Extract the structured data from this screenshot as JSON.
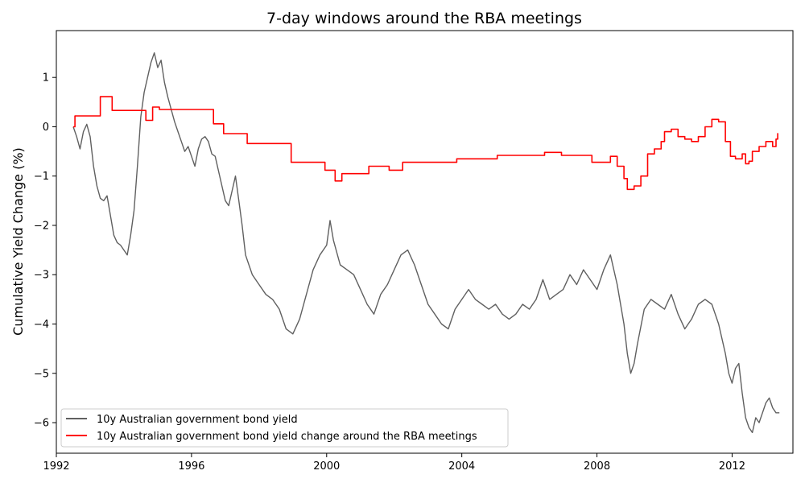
{
  "chart_data": {
    "type": "line",
    "title": "7-day windows around the RBA meetings",
    "xlabel": "",
    "ylabel": "Cumulative Yield Change (%)",
    "xlim": [
      1992.0,
      2013.8
    ],
    "ylim": [
      -6.62,
      1.95
    ],
    "x_ticks": [
      1992,
      1996,
      2000,
      2004,
      2008,
      2012
    ],
    "y_ticks": [
      1,
      0,
      -1,
      -2,
      -3,
      -4,
      -5,
      -6
    ],
    "y_tick_labels": [
      "1",
      "0",
      "−1",
      "−2",
      "−3",
      "−4",
      "−5",
      "−6"
    ],
    "grid": false,
    "legend_position": "lower-left",
    "series": [
      {
        "name": "10y Australian government bond yield",
        "color": "#606060",
        "style": "line",
        "points": [
          [
            1992.5,
            0.0
          ],
          [
            1992.6,
            -0.2
          ],
          [
            1992.7,
            -0.45
          ],
          [
            1992.8,
            -0.1
          ],
          [
            1992.9,
            0.05
          ],
          [
            1993.0,
            -0.2
          ],
          [
            1993.1,
            -0.8
          ],
          [
            1993.2,
            -1.2
          ],
          [
            1993.3,
            -1.45
          ],
          [
            1993.4,
            -1.5
          ],
          [
            1993.5,
            -1.4
          ],
          [
            1993.6,
            -1.8
          ],
          [
            1993.7,
            -2.2
          ],
          [
            1993.8,
            -2.35
          ],
          [
            1993.9,
            -2.4
          ],
          [
            1994.0,
            -2.5
          ],
          [
            1994.1,
            -2.6
          ],
          [
            1994.2,
            -2.2
          ],
          [
            1994.3,
            -1.7
          ],
          [
            1994.4,
            -0.8
          ],
          [
            1994.5,
            0.2
          ],
          [
            1994.6,
            0.7
          ],
          [
            1994.7,
            1.0
          ],
          [
            1994.8,
            1.3
          ],
          [
            1994.9,
            1.5
          ],
          [
            1995.0,
            1.2
          ],
          [
            1995.1,
            1.35
          ],
          [
            1995.2,
            0.9
          ],
          [
            1995.3,
            0.6
          ],
          [
            1995.4,
            0.35
          ],
          [
            1995.5,
            0.1
          ],
          [
            1995.6,
            -0.1
          ],
          [
            1995.7,
            -0.3
          ],
          [
            1995.8,
            -0.5
          ],
          [
            1995.9,
            -0.4
          ],
          [
            1996.0,
            -0.6
          ],
          [
            1996.1,
            -0.8
          ],
          [
            1996.2,
            -0.45
          ],
          [
            1996.3,
            -0.25
          ],
          [
            1996.4,
            -0.2
          ],
          [
            1996.5,
            -0.3
          ],
          [
            1996.6,
            -0.55
          ],
          [
            1996.7,
            -0.6
          ],
          [
            1996.8,
            -0.9
          ],
          [
            1996.9,
            -1.2
          ],
          [
            1997.0,
            -1.5
          ],
          [
            1997.1,
            -1.6
          ],
          [
            1997.2,
            -1.3
          ],
          [
            1997.3,
            -1.0
          ],
          [
            1997.4,
            -1.5
          ],
          [
            1997.5,
            -2.0
          ],
          [
            1997.6,
            -2.6
          ],
          [
            1997.7,
            -2.8
          ],
          [
            1997.8,
            -3.0
          ],
          [
            1997.9,
            -3.1
          ],
          [
            1998.0,
            -3.2
          ],
          [
            1998.2,
            -3.4
          ],
          [
            1998.4,
            -3.5
          ],
          [
            1998.6,
            -3.7
          ],
          [
            1998.8,
            -4.1
          ],
          [
            1999.0,
            -4.2
          ],
          [
            1999.2,
            -3.9
          ],
          [
            1999.4,
            -3.4
          ],
          [
            1999.6,
            -2.9
          ],
          [
            1999.8,
            -2.6
          ],
          [
            2000.0,
            -2.4
          ],
          [
            2000.1,
            -1.9
          ],
          [
            2000.2,
            -2.3
          ],
          [
            2000.4,
            -2.8
          ],
          [
            2000.6,
            -2.9
          ],
          [
            2000.8,
            -3.0
          ],
          [
            2001.0,
            -3.3
          ],
          [
            2001.2,
            -3.6
          ],
          [
            2001.4,
            -3.8
          ],
          [
            2001.6,
            -3.4
          ],
          [
            2001.8,
            -3.2
          ],
          [
            2002.0,
            -2.9
          ],
          [
            2002.2,
            -2.6
          ],
          [
            2002.4,
            -2.5
          ],
          [
            2002.6,
            -2.8
          ],
          [
            2002.8,
            -3.2
          ],
          [
            2003.0,
            -3.6
          ],
          [
            2003.2,
            -3.8
          ],
          [
            2003.4,
            -4.0
          ],
          [
            2003.6,
            -4.1
          ],
          [
            2003.8,
            -3.7
          ],
          [
            2004.0,
            -3.5
          ],
          [
            2004.2,
            -3.3
          ],
          [
            2004.4,
            -3.5
          ],
          [
            2004.6,
            -3.6
          ],
          [
            2004.8,
            -3.7
          ],
          [
            2005.0,
            -3.6
          ],
          [
            2005.2,
            -3.8
          ],
          [
            2005.4,
            -3.9
          ],
          [
            2005.6,
            -3.8
          ],
          [
            2005.8,
            -3.6
          ],
          [
            2006.0,
            -3.7
          ],
          [
            2006.2,
            -3.5
          ],
          [
            2006.4,
            -3.1
          ],
          [
            2006.6,
            -3.5
          ],
          [
            2006.8,
            -3.4
          ],
          [
            2007.0,
            -3.3
          ],
          [
            2007.2,
            -3.0
          ],
          [
            2007.4,
            -3.2
          ],
          [
            2007.6,
            -2.9
          ],
          [
            2007.8,
            -3.1
          ],
          [
            2008.0,
            -3.3
          ],
          [
            2008.2,
            -2.9
          ],
          [
            2008.4,
            -2.6
          ],
          [
            2008.6,
            -3.2
          ],
          [
            2008.8,
            -4.0
          ],
          [
            2008.9,
            -4.6
          ],
          [
            2009.0,
            -5.0
          ],
          [
            2009.1,
            -4.8
          ],
          [
            2009.2,
            -4.4
          ],
          [
            2009.4,
            -3.7
          ],
          [
            2009.6,
            -3.5
          ],
          [
            2009.8,
            -3.6
          ],
          [
            2010.0,
            -3.7
          ],
          [
            2010.2,
            -3.4
          ],
          [
            2010.4,
            -3.8
          ],
          [
            2010.6,
            -4.1
          ],
          [
            2010.8,
            -3.9
          ],
          [
            2011.0,
            -3.6
          ],
          [
            2011.2,
            -3.5
          ],
          [
            2011.4,
            -3.6
          ],
          [
            2011.6,
            -4.0
          ],
          [
            2011.8,
            -4.6
          ],
          [
            2011.9,
            -5.0
          ],
          [
            2012.0,
            -5.2
          ],
          [
            2012.1,
            -4.9
          ],
          [
            2012.2,
            -4.8
          ],
          [
            2012.3,
            -5.4
          ],
          [
            2012.4,
            -5.9
          ],
          [
            2012.5,
            -6.1
          ],
          [
            2012.6,
            -6.2
          ],
          [
            2012.7,
            -5.9
          ],
          [
            2012.8,
            -6.0
          ],
          [
            2012.9,
            -5.8
          ],
          [
            2013.0,
            -5.6
          ],
          [
            2013.1,
            -5.5
          ],
          [
            2013.2,
            -5.7
          ],
          [
            2013.3,
            -5.8
          ],
          [
            2013.4,
            -5.8
          ]
        ]
      },
      {
        "name": "10y Australian government bond yield change around the RBA meetings",
        "color": "#ff0000",
        "style": "step",
        "points": [
          [
            1992.5,
            0.0
          ],
          [
            1992.55,
            0.22
          ],
          [
            1993.25,
            0.22
          ],
          [
            1993.3,
            0.61
          ],
          [
            1993.6,
            0.61
          ],
          [
            1993.65,
            0.33
          ],
          [
            1994.6,
            0.33
          ],
          [
            1994.65,
            0.13
          ],
          [
            1994.8,
            0.13
          ],
          [
            1994.85,
            0.4
          ],
          [
            1995.0,
            0.4
          ],
          [
            1995.05,
            0.35
          ],
          [
            1996.6,
            0.35
          ],
          [
            1996.65,
            0.06
          ],
          [
            1996.9,
            0.06
          ],
          [
            1996.95,
            -0.14
          ],
          [
            1997.6,
            -0.14
          ],
          [
            1997.65,
            -0.34
          ],
          [
            1998.9,
            -0.34
          ],
          [
            1998.95,
            -0.72
          ],
          [
            1999.9,
            -0.72
          ],
          [
            1999.95,
            -0.88
          ],
          [
            2000.2,
            -0.88
          ],
          [
            2000.25,
            -1.1
          ],
          [
            2000.4,
            -1.1
          ],
          [
            2000.45,
            -0.95
          ],
          [
            2001.2,
            -0.95
          ],
          [
            2001.25,
            -0.8
          ],
          [
            2001.8,
            -0.8
          ],
          [
            2001.85,
            -0.88
          ],
          [
            2002.2,
            -0.88
          ],
          [
            2002.25,
            -0.72
          ],
          [
            2003.8,
            -0.72
          ],
          [
            2003.85,
            -0.65
          ],
          [
            2005.0,
            -0.65
          ],
          [
            2005.05,
            -0.58
          ],
          [
            2006.4,
            -0.58
          ],
          [
            2006.45,
            -0.52
          ],
          [
            2006.9,
            -0.52
          ],
          [
            2006.95,
            -0.58
          ],
          [
            2007.8,
            -0.58
          ],
          [
            2007.85,
            -0.72
          ],
          [
            2008.4,
            -0.6
          ],
          [
            2008.6,
            -0.8
          ],
          [
            2008.8,
            -1.05
          ],
          [
            2008.9,
            -1.27
          ],
          [
            2009.1,
            -1.2
          ],
          [
            2009.3,
            -1.0
          ],
          [
            2009.5,
            -0.55
          ],
          [
            2009.7,
            -0.45
          ],
          [
            2009.9,
            -0.3
          ],
          [
            2010.0,
            -0.1
          ],
          [
            2010.2,
            -0.05
          ],
          [
            2010.4,
            -0.2
          ],
          [
            2010.6,
            -0.25
          ],
          [
            2010.8,
            -0.3
          ],
          [
            2011.0,
            -0.2
          ],
          [
            2011.2,
            0.0
          ],
          [
            2011.4,
            0.15
          ],
          [
            2011.6,
            0.1
          ],
          [
            2011.8,
            -0.3
          ],
          [
            2011.95,
            -0.6
          ],
          [
            2012.1,
            -0.65
          ],
          [
            2012.3,
            -0.55
          ],
          [
            2012.4,
            -0.75
          ],
          [
            2012.5,
            -0.7
          ],
          [
            2012.6,
            -0.5
          ],
          [
            2012.8,
            -0.4
          ],
          [
            2013.0,
            -0.3
          ],
          [
            2013.2,
            -0.4
          ],
          [
            2013.3,
            -0.25
          ],
          [
            2013.35,
            -0.13
          ]
        ]
      }
    ]
  }
}
